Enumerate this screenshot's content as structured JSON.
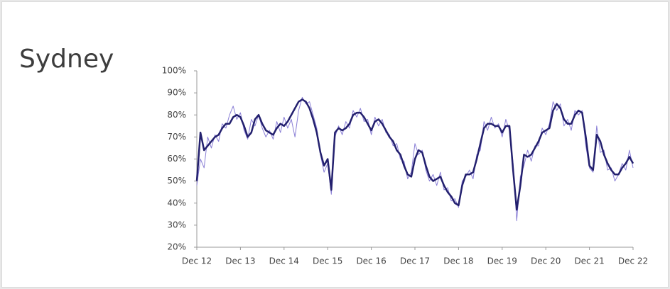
{
  "chart_data": {
    "type": "line",
    "title": "Sydney",
    "x": [
      0,
      1,
      2,
      3,
      4,
      5,
      6,
      7,
      8,
      9,
      10,
      11,
      12,
      13,
      14,
      15,
      16,
      17,
      18,
      19,
      20,
      21,
      22,
      23,
      24,
      25,
      26,
      27,
      28,
      29,
      30,
      31,
      32,
      33,
      34,
      35,
      36,
      37,
      38,
      39,
      40,
      41,
      42,
      43,
      44,
      45,
      46,
      47,
      48,
      49,
      50,
      51,
      52,
      53,
      54,
      55,
      56,
      57,
      58,
      59,
      60,
      61,
      62,
      63,
      64,
      65,
      66,
      67,
      68,
      69,
      70,
      71,
      72,
      73,
      74,
      75,
      76,
      77,
      78,
      79,
      80,
      81,
      82,
      83,
      84,
      85,
      86,
      87,
      88,
      89,
      90,
      91,
      92,
      93,
      94,
      95,
      96,
      97,
      98,
      99,
      100,
      101,
      102,
      103,
      104,
      105,
      106,
      107,
      108,
      109,
      110,
      111,
      112,
      113,
      114,
      115,
      116,
      117,
      118,
      119,
      120
    ],
    "series": [
      {
        "color": "#8a7fd6",
        "width": 1,
        "values": [
          48,
          60,
          56,
          70,
          65,
          71,
          68,
          76,
          74,
          80,
          84,
          78,
          81,
          73,
          69,
          78,
          75,
          80,
          74,
          70,
          73,
          69,
          77,
          72,
          79,
          74,
          78,
          70,
          82,
          88,
          85,
          86,
          80,
          74,
          62,
          54,
          58,
          44,
          70,
          75,
          71,
          77,
          74,
          82,
          79,
          83,
          77,
          78,
          71,
          79,
          75,
          78,
          72,
          71,
          66,
          67,
          60,
          59,
          51,
          54,
          67,
          62,
          64,
          55,
          50,
          53,
          48,
          54,
          46,
          47,
          41,
          42,
          38,
          50,
          52,
          55,
          51,
          62,
          64,
          77,
          73,
          79,
          74,
          76,
          70,
          78,
          73,
          58,
          32,
          52,
          57,
          64,
          59,
          66,
          66,
          74,
          71,
          76,
          86,
          82,
          85,
          75,
          78,
          73,
          82,
          80,
          82,
          66,
          56,
          54,
          75,
          63,
          64,
          55,
          56,
          50,
          53,
          58,
          55,
          64,
          56
        ]
      },
      {
        "color": "#23206e",
        "width": 2.5,
        "values": [
          50,
          72,
          64,
          66,
          68,
          70,
          71,
          74,
          76,
          76,
          79,
          80,
          79,
          75,
          70,
          72,
          78,
          80,
          76,
          73,
          72,
          71,
          74,
          76,
          75,
          77,
          80,
          83,
          86,
          87,
          86,
          83,
          78,
          72,
          63,
          57,
          60,
          46,
          72,
          74,
          73,
          74,
          76,
          80,
          81,
          81,
          79,
          76,
          73,
          77,
          78,
          76,
          73,
          70,
          68,
          64,
          62,
          57,
          53,
          52,
          60,
          64,
          63,
          57,
          52,
          50,
          51,
          52,
          48,
          45,
          43,
          40,
          39,
          48,
          53,
          53,
          54,
          60,
          67,
          74,
          76,
          76,
          75,
          75,
          72,
          75,
          75,
          55,
          37,
          48,
          62,
          61,
          62,
          65,
          68,
          72,
          73,
          74,
          82,
          85,
          83,
          78,
          76,
          76,
          80,
          82,
          81,
          70,
          57,
          55,
          71,
          68,
          62,
          58,
          55,
          53,
          53,
          56,
          58,
          61,
          58
        ]
      }
    ],
    "xlim": [
      0,
      120
    ],
    "xticks": [
      {
        "value": 0,
        "label": "Dec 12"
      },
      {
        "value": 12,
        "label": "Dec 13"
      },
      {
        "value": 24,
        "label": "Dec 14"
      },
      {
        "value": 36,
        "label": "Dec 15"
      },
      {
        "value": 48,
        "label": "Dec 16"
      },
      {
        "value": 60,
        "label": "Dec 17"
      },
      {
        "value": 72,
        "label": "Dec 18"
      },
      {
        "value": 84,
        "label": "Dec 19"
      },
      {
        "value": 96,
        "label": "Dec 20"
      },
      {
        "value": 108,
        "label": "Dec 21"
      },
      {
        "value": 120,
        "label": "Dec 22"
      }
    ],
    "ylim": [
      20,
      100
    ],
    "yticks": [
      {
        "value": 20,
        "label": "20%"
      },
      {
        "value": 30,
        "label": "30%"
      },
      {
        "value": 40,
        "label": "40%"
      },
      {
        "value": 50,
        "label": "50%"
      },
      {
        "value": 60,
        "label": "60%"
      },
      {
        "value": 70,
        "label": "70%"
      },
      {
        "value": 80,
        "label": "80%"
      },
      {
        "value": 90,
        "label": "90%"
      },
      {
        "value": 100,
        "label": "100%"
      }
    ],
    "grid": false
  }
}
